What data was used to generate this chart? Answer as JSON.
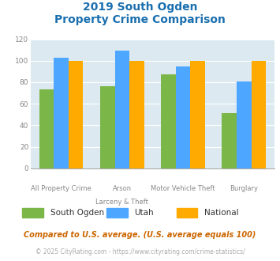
{
  "title_line1": "2019 South Ogden",
  "title_line2": "Property Crime Comparison",
  "cat_labels_line1": [
    "All Property Crime",
    "Arson",
    "Motor Vehicle Theft",
    "Burglary"
  ],
  "cat_labels_line2": [
    "",
    "Larceny & Theft",
    "",
    ""
  ],
  "south_ogden": [
    73,
    76,
    87,
    51
  ],
  "utah": [
    103,
    109,
    95,
    81
  ],
  "national": [
    100,
    100,
    100,
    100
  ],
  "colors": {
    "south_ogden": "#7ab648",
    "utah": "#4da6ff",
    "national": "#ffaa00"
  },
  "ylim": [
    0,
    120
  ],
  "yticks": [
    0,
    20,
    40,
    60,
    80,
    100,
    120
  ],
  "title_color": "#1a6faf",
  "background_color": "#dce9f0",
  "legend_labels": [
    "South Ogden",
    "Utah",
    "National"
  ],
  "footnote1": "Compared to U.S. average. (U.S. average equals 100)",
  "footnote2": "© 2025 CityRating.com - https://www.cityrating.com/crime-statistics/",
  "footnote1_color": "#cc6600",
  "footnote2_color": "#aaaaaa",
  "url_color": "#4da6ff"
}
